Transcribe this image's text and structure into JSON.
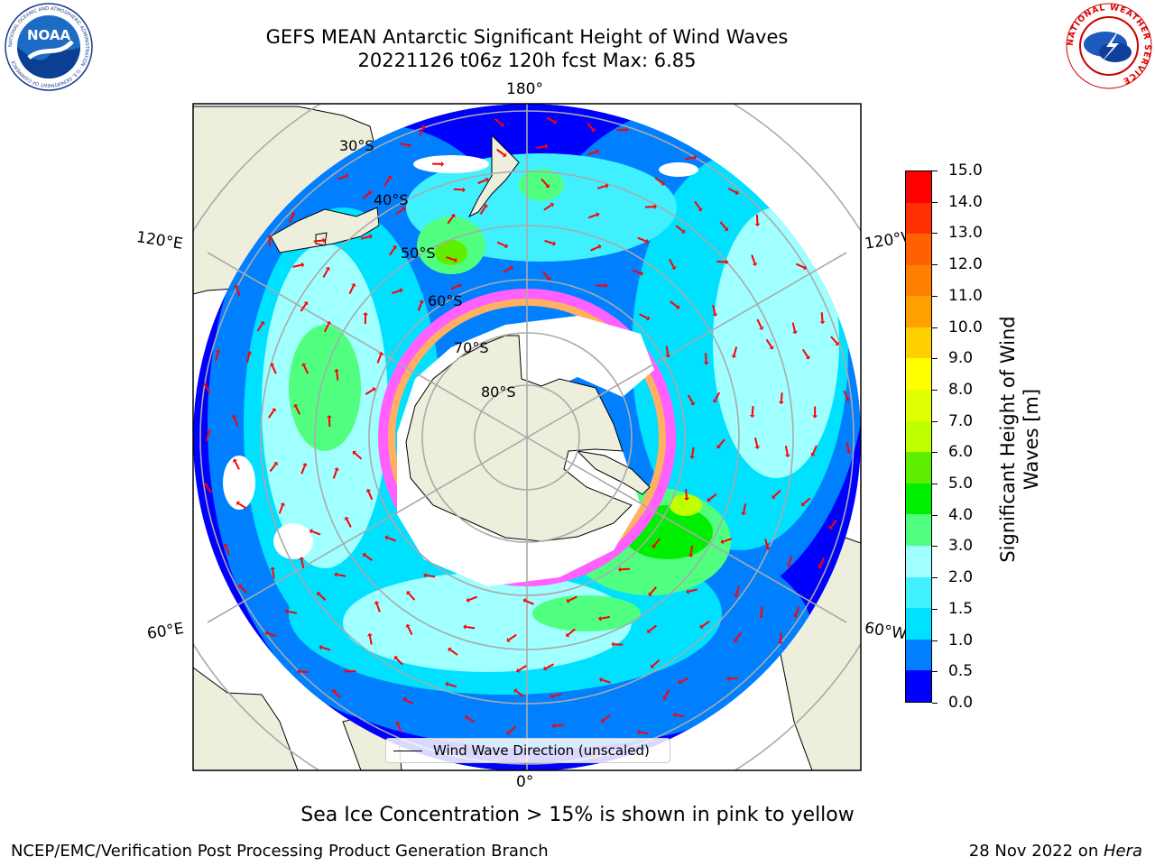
{
  "title": {
    "line1": "GEFS MEAN Antarctic Significant Height of Wind Waves",
    "line2": "20221126 t06z 120h fcst   Max: 6.85"
  },
  "map": {
    "projection": "south-polar-stereographic",
    "lon_labels": {
      "top": "180°",
      "bottom": "0°",
      "upper_left": "120°E",
      "upper_right": "120°W",
      "lower_left": "60°E",
      "lower_right": "60°W"
    },
    "lat_labels": [
      "30°S",
      "40°S",
      "50°S",
      "60°S",
      "70°S",
      "80°S"
    ]
  },
  "colorbar": {
    "label": "Significant Height of Wind Waves [m]",
    "ticks": [
      "0.0",
      "0.5",
      "1.0",
      "1.5",
      "2.0",
      "3.0",
      "4.0",
      "5.0",
      "6.0",
      "7.0",
      "8.0",
      "9.0",
      "10.0",
      "11.0",
      "12.0",
      "13.0",
      "14.0",
      "15.0"
    ],
    "colors": [
      "#0000ff",
      "#0080ff",
      "#00e0ff",
      "#40f0ff",
      "#a0ffff",
      "#50ff80",
      "#00ee00",
      "#60ee00",
      "#c0ff00",
      "#e0ff00",
      "#ffff00",
      "#ffd000",
      "#ffa000",
      "#ff8000",
      "#ff6000",
      "#ff3000",
      "#ff0000"
    ]
  },
  "legend": {
    "label": "Wind Wave Direction (unscaled)"
  },
  "caption": "Sea Ice Concentration > 15% is shown in pink to yellow",
  "footer": {
    "left": "NCEP/EMC/Verification Post Processing Product Generation Branch",
    "right_prefix": "28 Nov 2022 on ",
    "right_host": "Hera"
  },
  "logos": {
    "noaa": {
      "text": "NOAA",
      "ring": "NATIONAL OCEANIC AND ATMOSPHERIC ADMINISTRATION · U.S. DEPARTMENT OF COMMERCE"
    },
    "nws": {
      "ring": "NATIONAL WEATHER SERVICE"
    }
  }
}
